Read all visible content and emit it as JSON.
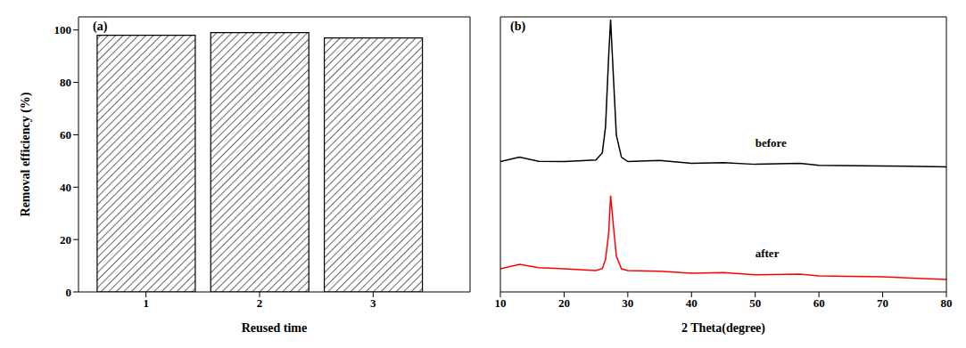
{
  "chart_data": [
    {
      "type": "bar",
      "title": "(a)",
      "x_label": "Reused time",
      "y_label": "Removal efficiency (%)",
      "categories": [
        "1",
        "2",
        "3"
      ],
      "values": [
        98,
        99,
        97
      ],
      "color": "#333333",
      "ylim": [
        0,
        105
      ],
      "yticks": [
        0,
        20,
        40,
        60,
        80,
        100
      ]
    },
    {
      "type": "line",
      "title": "(b)",
      "x_label": "2 Theta(degree)",
      "x": [
        10,
        13,
        16,
        20,
        25,
        26,
        26.5,
        27,
        27.3,
        27.7,
        28.2,
        29,
        30,
        35,
        40,
        45,
        50,
        57,
        60,
        70,
        80
      ],
      "series": [
        {
          "name": "before",
          "color": "#000000",
          "values": [
            47.4,
            49,
            47.5,
            47.4,
            48,
            50.6,
            60,
            86,
            99,
            80,
            57,
            49,
            47.4,
            47.8,
            46.8,
            47,
            46.4,
            46.8,
            46,
            45.8,
            45.5
          ]
        },
        {
          "name": "after",
          "color": "#ff0000",
          "values": [
            8.4,
            10,
            8.8,
            8.4,
            7.8,
            8.5,
            11.7,
            21.4,
            35,
            25,
            13,
            8.4,
            7.8,
            7.5,
            6.8,
            7,
            6.2,
            6.5,
            5.8,
            5.5,
            4.5
          ]
        }
      ],
      "xlim": [
        10,
        80
      ],
      "xticks": [
        10,
        20,
        30,
        40,
        50,
        60,
        70,
        80
      ],
      "ylim": [
        0,
        100
      ],
      "tick_labels": "x"
    }
  ]
}
